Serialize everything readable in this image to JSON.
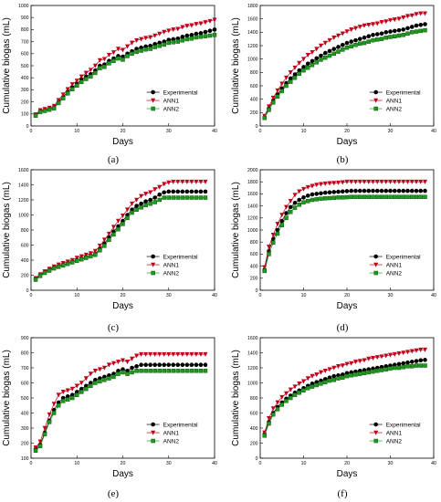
{
  "colors": {
    "experimental": "#000000",
    "ann1": "#c0001a",
    "ann2": "#1d9a1d"
  },
  "chart_data": [
    {
      "type": "line",
      "label": "(a)",
      "xlabel": "Days",
      "ylabel": "Cumulative biogas (mL)",
      "xlim": [
        0,
        40
      ],
      "ylim": [
        0,
        1000
      ],
      "xticks": [
        0,
        10,
        20,
        30,
        40
      ],
      "yticks": [
        0,
        100,
        200,
        300,
        400,
        500,
        600,
        700,
        800,
        900,
        1000
      ],
      "grid": false,
      "legend": "right",
      "x": [
        1,
        2,
        3,
        4,
        5,
        6,
        7,
        8,
        9,
        10,
        11,
        12,
        13,
        14,
        15,
        16,
        17,
        18,
        19,
        20,
        21,
        22,
        23,
        24,
        25,
        26,
        27,
        28,
        29,
        30,
        31,
        32,
        33,
        34,
        35,
        36,
        37,
        38,
        39,
        40
      ],
      "series": [
        {
          "name": "Experimental",
          "values": [
            90,
            120,
            130,
            140,
            150,
            200,
            240,
            285,
            320,
            350,
            385,
            410,
            430,
            460,
            500,
            510,
            540,
            560,
            580,
            575,
            600,
            620,
            640,
            650,
            660,
            665,
            680,
            690,
            700,
            715,
            720,
            725,
            740,
            750,
            755,
            765,
            770,
            780,
            790,
            800
          ]
        },
        {
          "name": "ANN1",
          "values": [
            95,
            130,
            140,
            150,
            165,
            215,
            260,
            305,
            345,
            375,
            410,
            440,
            465,
            500,
            545,
            555,
            590,
            610,
            640,
            630,
            660,
            690,
            710,
            720,
            730,
            735,
            750,
            765,
            780,
            790,
            800,
            805,
            820,
            830,
            835,
            845,
            850,
            860,
            870,
            880
          ]
        },
        {
          "name": "ANN2",
          "values": [
            85,
            115,
            125,
            135,
            145,
            190,
            230,
            270,
            305,
            335,
            365,
            390,
            410,
            440,
            480,
            490,
            520,
            540,
            560,
            550,
            580,
            600,
            615,
            625,
            635,
            640,
            655,
            665,
            675,
            690,
            695,
            700,
            710,
            720,
            725,
            735,
            740,
            745,
            750,
            755
          ]
        }
      ]
    },
    {
      "type": "line",
      "label": "(b)",
      "xlabel": "Days",
      "ylabel": "Cumulative biogas (mL)",
      "xlim": [
        0,
        40
      ],
      "ylim": [
        0,
        1800
      ],
      "xticks": [
        0,
        10,
        20,
        30,
        40
      ],
      "yticks": [
        0,
        200,
        400,
        600,
        800,
        1000,
        1200,
        1400,
        1600,
        1800
      ],
      "grid": false,
      "legend": "right",
      "x": [
        1,
        2,
        3,
        4,
        5,
        6,
        7,
        8,
        9,
        10,
        11,
        12,
        13,
        14,
        15,
        16,
        17,
        18,
        19,
        20,
        21,
        22,
        23,
        24,
        25,
        26,
        27,
        28,
        29,
        30,
        31,
        32,
        33,
        34,
        35,
        36,
        37,
        38
      ],
      "series": [
        {
          "name": "Experimental",
          "values": [
            130,
            260,
            380,
            470,
            560,
            640,
            710,
            770,
            830,
            880,
            930,
            970,
            1010,
            1050,
            1090,
            1120,
            1150,
            1180,
            1210,
            1240,
            1260,
            1280,
            1300,
            1320,
            1340,
            1360,
            1370,
            1380,
            1400,
            1410,
            1420,
            1430,
            1440,
            1460,
            1480,
            1500,
            1510,
            1520
          ]
        },
        {
          "name": "ANN1",
          "values": [
            150,
            290,
            420,
            530,
            630,
            720,
            800,
            870,
            940,
            1000,
            1060,
            1100,
            1150,
            1200,
            1240,
            1280,
            1320,
            1350,
            1380,
            1410,
            1440,
            1460,
            1480,
            1500,
            1510,
            1520,
            1530,
            1550,
            1560,
            1580,
            1590,
            1600,
            1620,
            1640,
            1650,
            1670,
            1680,
            1680
          ]
        },
        {
          "name": "ANN2",
          "values": [
            120,
            240,
            350,
            440,
            520,
            600,
            660,
            720,
            780,
            830,
            870,
            910,
            950,
            990,
            1020,
            1050,
            1080,
            1110,
            1140,
            1170,
            1190,
            1210,
            1230,
            1240,
            1260,
            1280,
            1290,
            1300,
            1320,
            1330,
            1340,
            1350,
            1360,
            1380,
            1400,
            1410,
            1420,
            1430
          ]
        }
      ]
    },
    {
      "type": "line",
      "label": "(c)",
      "xlabel": "Days",
      "ylabel": "Cumulative biogas (mL)",
      "xlim": [
        0,
        40
      ],
      "ylim": [
        0,
        1600
      ],
      "xticks": [
        0,
        10,
        20,
        30,
        40
      ],
      "yticks": [
        0,
        200,
        400,
        600,
        800,
        1000,
        1200,
        1400,
        1600
      ],
      "grid": false,
      "legend": "right",
      "x": [
        1,
        2,
        3,
        4,
        5,
        6,
        7,
        8,
        9,
        10,
        11,
        12,
        13,
        14,
        15,
        16,
        17,
        18,
        19,
        20,
        21,
        22,
        23,
        24,
        25,
        26,
        27,
        28,
        29,
        30,
        31,
        32,
        33,
        34,
        35,
        36,
        37,
        38
      ],
      "series": [
        {
          "name": "Experimental",
          "values": [
            150,
            200,
            240,
            270,
            300,
            320,
            340,
            360,
            380,
            400,
            420,
            440,
            460,
            480,
            550,
            620,
            700,
            780,
            850,
            920,
            1000,
            1070,
            1120,
            1150,
            1180,
            1200,
            1230,
            1270,
            1300,
            1310,
            1310,
            1310,
            1310,
            1310,
            1310,
            1310,
            1310,
            1310
          ]
        },
        {
          "name": "ANN1",
          "values": [
            160,
            210,
            250,
            285,
            315,
            340,
            360,
            380,
            400,
            430,
            450,
            470,
            490,
            520,
            590,
            670,
            750,
            840,
            920,
            990,
            1070,
            1150,
            1200,
            1250,
            1280,
            1300,
            1340,
            1370,
            1410,
            1430,
            1440,
            1440,
            1440,
            1440,
            1440,
            1440,
            1440,
            1440
          ]
        },
        {
          "name": "ANN2",
          "values": [
            140,
            190,
            230,
            260,
            290,
            310,
            330,
            350,
            370,
            390,
            410,
            430,
            450,
            470,
            530,
            590,
            670,
            740,
            810,
            880,
            960,
            1030,
            1070,
            1100,
            1130,
            1150,
            1170,
            1200,
            1230,
            1230,
            1230,
            1230,
            1230,
            1230,
            1230,
            1230,
            1230,
            1230
          ]
        }
      ]
    },
    {
      "type": "line",
      "label": "(d)",
      "xlabel": "Days",
      "ylabel": "Cumulative biogas (mL)",
      "xlim": [
        0,
        40
      ],
      "ylim": [
        0,
        2000
      ],
      "xticks": [
        0,
        10,
        20,
        30,
        40
      ],
      "yticks": [
        0,
        200,
        400,
        600,
        800,
        1000,
        1200,
        1400,
        1600,
        1800,
        2000
      ],
      "grid": false,
      "legend": "right",
      "x": [
        1,
        2,
        3,
        4,
        5,
        6,
        7,
        8,
        9,
        10,
        11,
        12,
        13,
        14,
        15,
        16,
        17,
        18,
        19,
        20,
        21,
        22,
        23,
        24,
        25,
        26,
        27,
        28,
        29,
        30,
        31,
        32,
        33,
        34,
        35,
        36,
        37,
        38
      ],
      "series": [
        {
          "name": "Experimental",
          "values": [
            340,
            650,
            850,
            1000,
            1150,
            1280,
            1380,
            1450,
            1500,
            1540,
            1570,
            1590,
            1600,
            1610,
            1620,
            1625,
            1630,
            1635,
            1640,
            1645,
            1650,
            1650,
            1650,
            1650,
            1650,
            1650,
            1650,
            1650,
            1650,
            1650,
            1650,
            1650,
            1650,
            1650,
            1650,
            1650,
            1650,
            1650
          ]
        },
        {
          "name": "ANN1",
          "values": [
            380,
            720,
            920,
            1100,
            1250,
            1380,
            1480,
            1580,
            1640,
            1680,
            1710,
            1730,
            1750,
            1760,
            1770,
            1775,
            1780,
            1785,
            1790,
            1800,
            1800,
            1800,
            1800,
            1800,
            1800,
            1800,
            1800,
            1800,
            1800,
            1800,
            1800,
            1800,
            1800,
            1800,
            1800,
            1800,
            1800,
            1800
          ]
        },
        {
          "name": "ANN2",
          "values": [
            320,
            600,
            790,
            940,
            1080,
            1200,
            1300,
            1370,
            1420,
            1460,
            1480,
            1500,
            1510,
            1520,
            1525,
            1530,
            1535,
            1540,
            1540,
            1545,
            1550,
            1550,
            1550,
            1550,
            1550,
            1550,
            1550,
            1550,
            1550,
            1550,
            1550,
            1550,
            1550,
            1550,
            1550,
            1550,
            1550,
            1550
          ]
        }
      ]
    },
    {
      "type": "line",
      "label": "(e)",
      "xlabel": "Days",
      "ylabel": "Cumulative biogas (mL)",
      "xlim": [
        0,
        40
      ],
      "ylim": [
        100,
        900
      ],
      "xticks": [
        0,
        10,
        20,
        30,
        40
      ],
      "yticks": [
        100,
        200,
        300,
        400,
        500,
        600,
        700,
        800,
        900
      ],
      "grid": false,
      "legend": "right",
      "x": [
        1,
        2,
        3,
        4,
        5,
        6,
        7,
        8,
        9,
        10,
        11,
        12,
        13,
        14,
        15,
        16,
        17,
        18,
        19,
        20,
        21,
        22,
        23,
        24,
        25,
        26,
        27,
        28,
        29,
        30,
        31,
        32,
        33,
        34,
        35,
        36,
        37,
        38
      ],
      "series": [
        {
          "name": "Experimental",
          "values": [
            160,
            190,
            270,
            350,
            420,
            470,
            500,
            510,
            520,
            540,
            560,
            580,
            600,
            620,
            630,
            640,
            650,
            660,
            680,
            690,
            680,
            700,
            710,
            720,
            720,
            720,
            720,
            720,
            720,
            720,
            720,
            720,
            720,
            720,
            720,
            720,
            720,
            720
          ]
        },
        {
          "name": "ANN1",
          "values": [
            170,
            210,
            300,
            390,
            460,
            520,
            540,
            550,
            560,
            580,
            600,
            630,
            660,
            680,
            690,
            700,
            720,
            730,
            740,
            750,
            740,
            760,
            780,
            790,
            790,
            790,
            790,
            790,
            790,
            790,
            790,
            790,
            790,
            790,
            790,
            790,
            790,
            790
          ]
        },
        {
          "name": "ANN2",
          "values": [
            150,
            180,
            260,
            340,
            400,
            450,
            480,
            490,
            500,
            520,
            540,
            560,
            580,
            600,
            610,
            620,
            630,
            640,
            660,
            670,
            660,
            670,
            680,
            680,
            680,
            680,
            680,
            680,
            680,
            680,
            680,
            680,
            680,
            680,
            680,
            680,
            680,
            680
          ]
        }
      ]
    },
    {
      "type": "line",
      "label": "(f)",
      "xlabel": "Days",
      "ylabel": "Cumulative biogas (mL)",
      "xlim": [
        0,
        40
      ],
      "ylim": [
        0,
        1600
      ],
      "xticks": [
        0,
        10,
        20,
        30,
        40
      ],
      "yticks": [
        0,
        200,
        400,
        600,
        800,
        1000,
        1200,
        1400,
        1600
      ],
      "grid": false,
      "legend": "right",
      "x": [
        1,
        2,
        3,
        4,
        5,
        6,
        7,
        8,
        9,
        10,
        11,
        12,
        13,
        14,
        15,
        16,
        17,
        18,
        19,
        20,
        21,
        22,
        23,
        24,
        25,
        26,
        27,
        28,
        29,
        30,
        31,
        32,
        33,
        34,
        35,
        36,
        37,
        38
      ],
      "series": [
        {
          "name": "Experimental",
          "values": [
            320,
            480,
            600,
            680,
            740,
            790,
            830,
            870,
            900,
            930,
            960,
            990,
            1010,
            1030,
            1050,
            1070,
            1090,
            1100,
            1110,
            1130,
            1140,
            1150,
            1160,
            1170,
            1180,
            1190,
            1200,
            1210,
            1220,
            1230,
            1240,
            1250,
            1260,
            1270,
            1280,
            1290,
            1300,
            1305
          ]
        },
        {
          "name": "ANN1",
          "values": [
            340,
            530,
            660,
            740,
            810,
            860,
            910,
            950,
            990,
            1020,
            1060,
            1090,
            1110,
            1140,
            1160,
            1180,
            1200,
            1220,
            1230,
            1250,
            1260,
            1280,
            1290,
            1300,
            1320,
            1330,
            1340,
            1350,
            1360,
            1370,
            1380,
            1390,
            1400,
            1410,
            1420,
            1430,
            1440,
            1440
          ]
        },
        {
          "name": "ANN2",
          "values": [
            300,
            460,
            580,
            650,
            710,
            760,
            800,
            840,
            870,
            900,
            930,
            950,
            970,
            990,
            1010,
            1030,
            1040,
            1060,
            1070,
            1090,
            1100,
            1110,
            1120,
            1130,
            1140,
            1150,
            1160,
            1170,
            1180,
            1190,
            1200,
            1200,
            1210,
            1220,
            1220,
            1230,
            1230,
            1230
          ]
        }
      ]
    }
  ]
}
